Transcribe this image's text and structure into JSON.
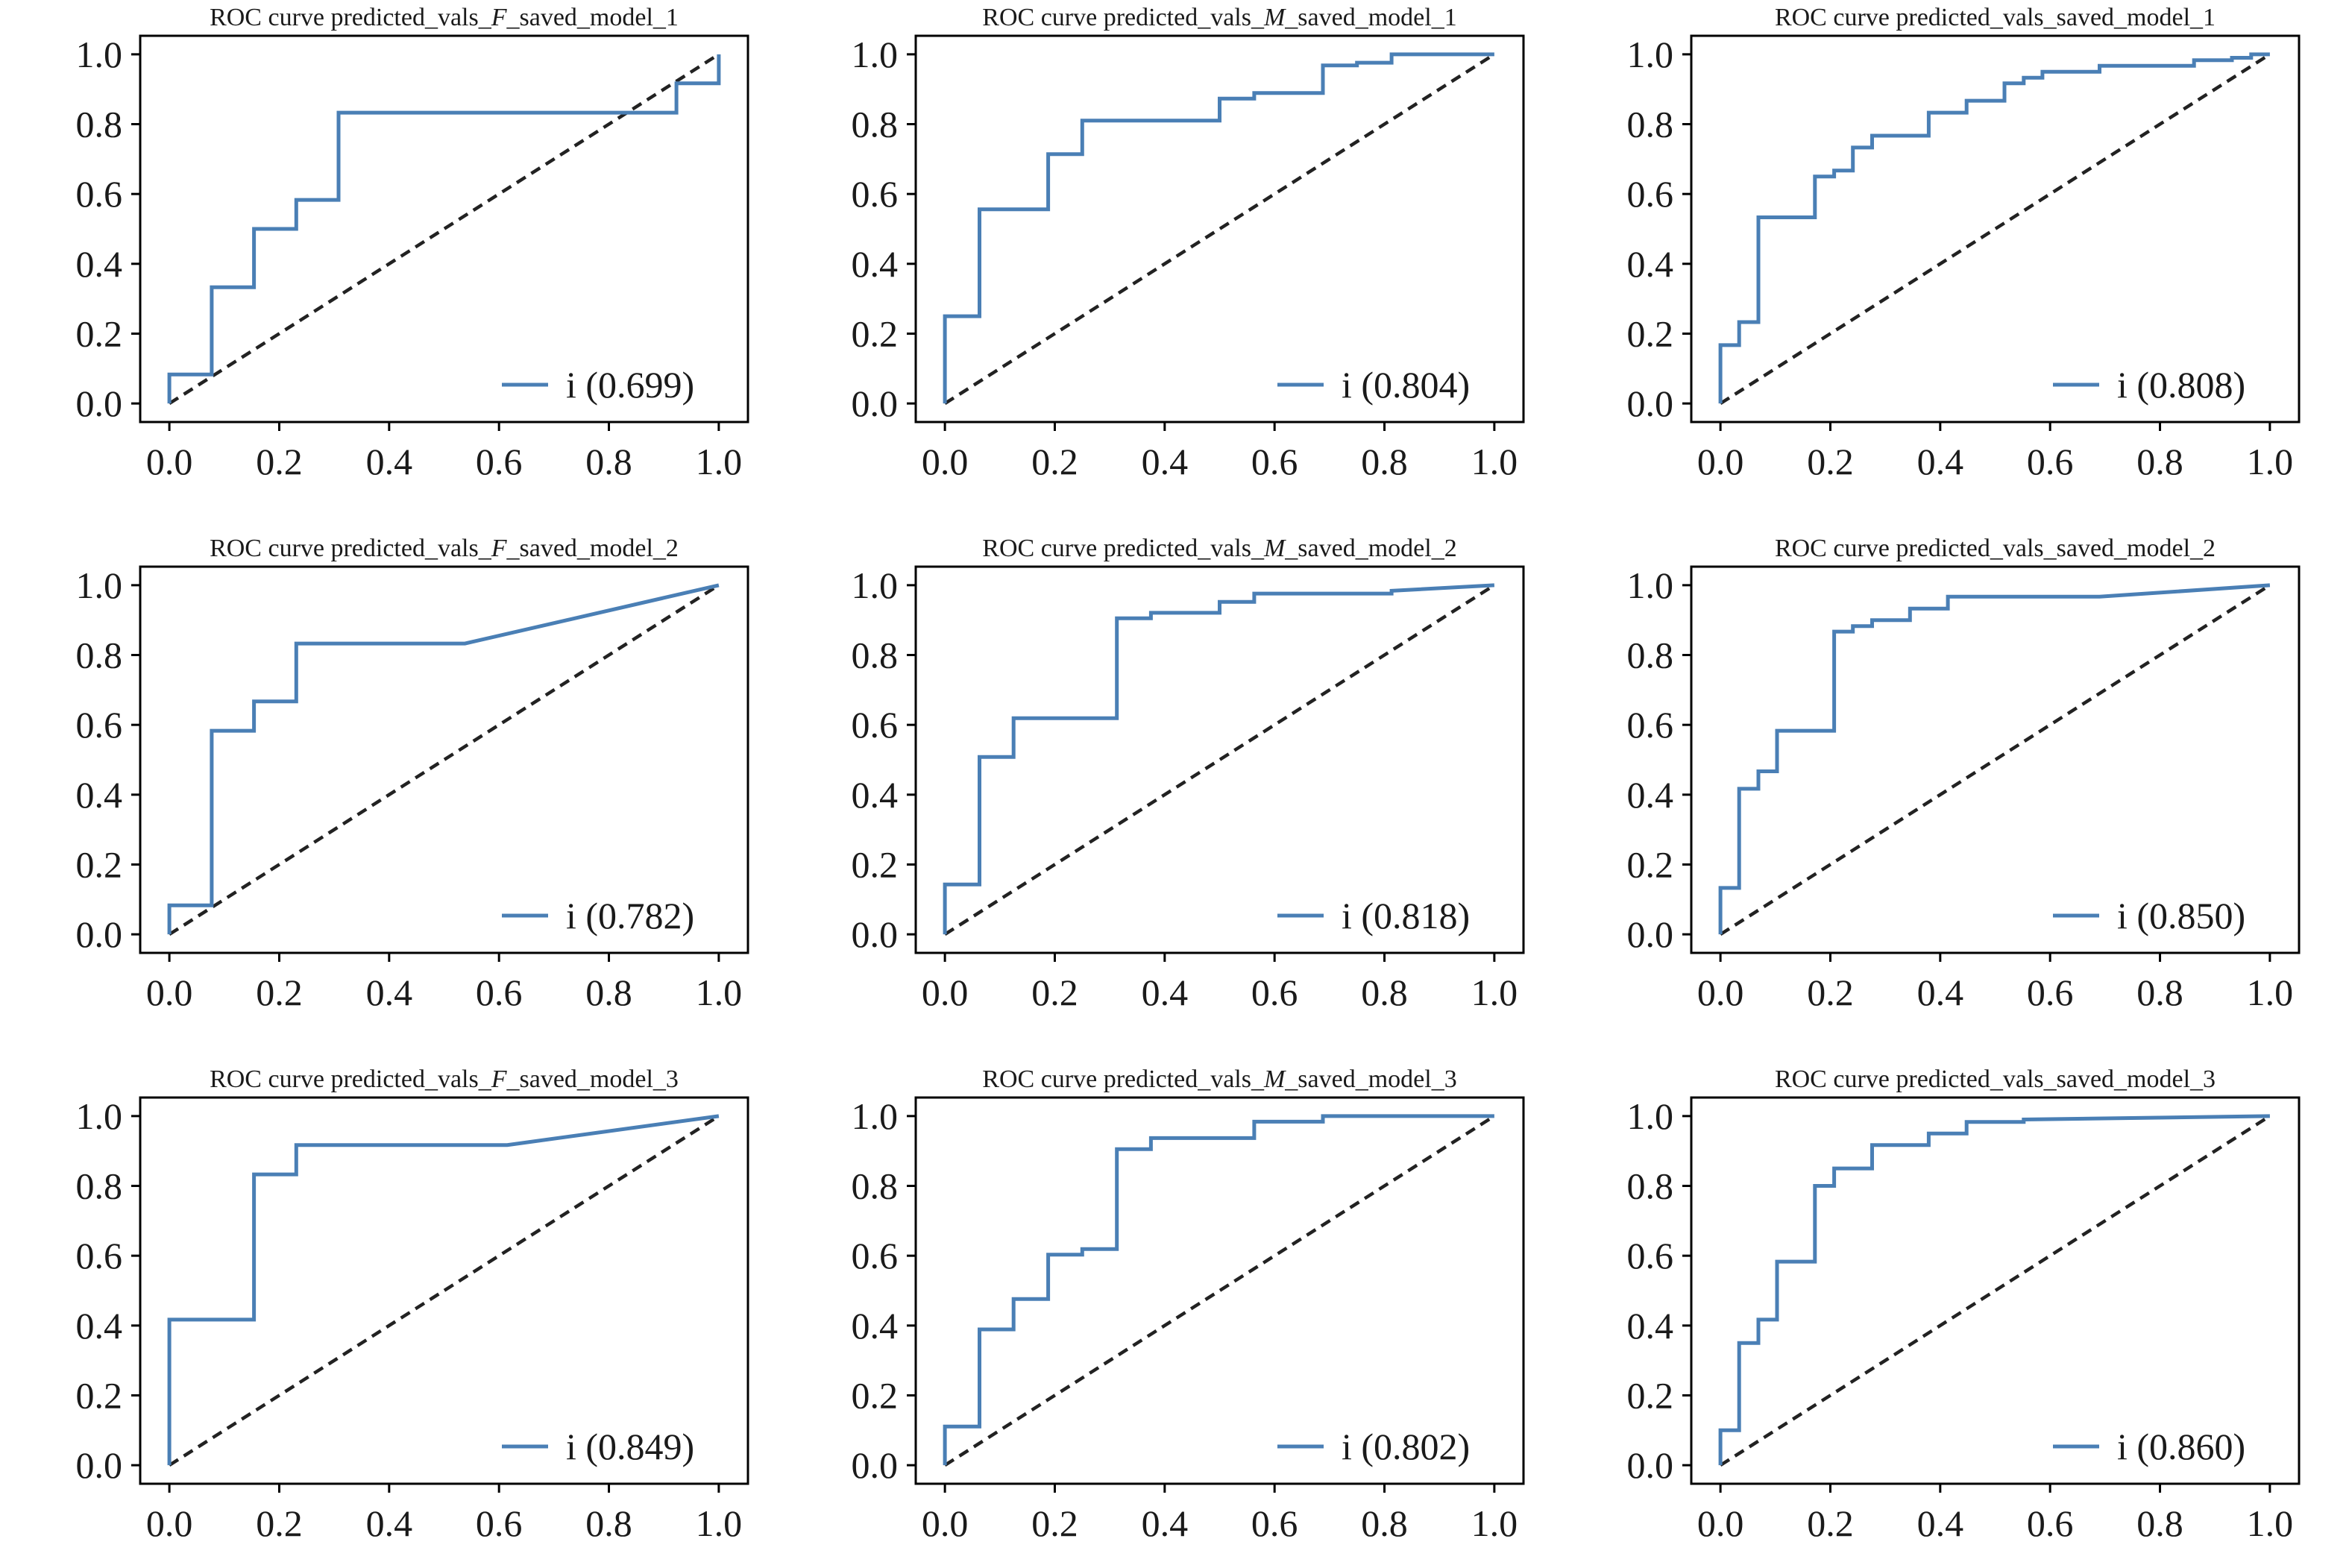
{
  "colors": {
    "roc": "#4a7fb5",
    "diagonal": "#222222",
    "axes": "#000000"
  },
  "chart_data": [
    {
      "type": "line",
      "title": "ROC curve predicted_vals_F_saved_model_1",
      "title_parts": [
        "ROC curve predicted_vals_",
        "F",
        "_saved_model_1"
      ],
      "legend": "i (0.699)",
      "legend_placement": "lower-right",
      "grid": false,
      "xlim": [
        0,
        1
      ],
      "ylim": [
        0,
        1
      ],
      "xticks": [
        "0.0",
        "0.2",
        "0.4",
        "0.6",
        "0.8",
        "1.0"
      ],
      "yticks": [
        "0.0",
        "0.2",
        "0.4",
        "0.6",
        "0.8",
        "1.0"
      ],
      "series": [
        {
          "x": [
            0,
            0,
            0.077,
            0.077,
            0.154,
            0.154,
            0.231,
            0.231,
            0.308,
            0.308,
            0.923,
            0.923,
            1.0,
            1.0
          ],
          "y": [
            0,
            0.083,
            0.083,
            0.333,
            0.333,
            0.5,
            0.5,
            0.583,
            0.583,
            0.833,
            0.833,
            0.917,
            0.917,
            1.0
          ]
        },
        {
          "x": [
            0,
            1
          ],
          "y": [
            0,
            1
          ]
        }
      ]
    },
    {
      "type": "line",
      "title": "ROC curve predicted_vals_M_saved_model_1",
      "title_parts": [
        "ROC curve predicted_vals_",
        "M",
        "_saved_model_1"
      ],
      "legend": "i (0.804)",
      "legend_placement": "lower-right",
      "grid": false,
      "xlim": [
        0,
        1
      ],
      "ylim": [
        0,
        1
      ],
      "xticks": [
        "0.0",
        "0.2",
        "0.4",
        "0.6",
        "0.8",
        "1.0"
      ],
      "yticks": [
        "0.0",
        "0.2",
        "0.4",
        "0.6",
        "0.8",
        "1.0"
      ],
      "series": [
        {
          "x": [
            0,
            0,
            0.063,
            0.063,
            0.188,
            0.188,
            0.25,
            0.25,
            0.5,
            0.5,
            0.563,
            0.563,
            0.688,
            0.688,
            0.75,
            0.75,
            0.813,
            0.813,
            1.0
          ],
          "y": [
            0,
            0.25,
            0.25,
            0.556,
            0.556,
            0.714,
            0.714,
            0.81,
            0.81,
            0.873,
            0.873,
            0.889,
            0.889,
            0.968,
            0.968,
            0.976,
            0.976,
            1.0,
            1.0
          ]
        },
        {
          "x": [
            0,
            1
          ],
          "y": [
            0,
            1
          ]
        }
      ]
    },
    {
      "type": "line",
      "title": "ROC curve predicted_vals_saved_model_1",
      "title_parts": [
        "ROC curve predicted_vals_saved_model_1"
      ],
      "legend": "i (0.808)",
      "legend_placement": "lower-right",
      "grid": false,
      "xlim": [
        0,
        1
      ],
      "ylim": [
        0,
        1
      ],
      "xticks": [
        "0.0",
        "0.2",
        "0.4",
        "0.6",
        "0.8",
        "1.0"
      ],
      "yticks": [
        "0.0",
        "0.2",
        "0.4",
        "0.6",
        "0.8",
        "1.0"
      ],
      "series": [
        {
          "x": [
            0,
            0,
            0.034,
            0.034,
            0.069,
            0.069,
            0.103,
            0.103,
            0.172,
            0.172,
            0.207,
            0.207,
            0.241,
            0.241,
            0.276,
            0.276,
            0.379,
            0.379,
            0.448,
            0.448,
            0.517,
            0.517,
            0.552,
            0.552,
            0.586,
            0.586,
            0.69,
            0.69,
            0.862,
            0.862,
            0.931,
            0.931,
            0.966,
            0.966,
            1.0
          ],
          "y": [
            0,
            0.167,
            0.167,
            0.233,
            0.233,
            0.533,
            0.533,
            0.533,
            0.533,
            0.65,
            0.65,
            0.667,
            0.667,
            0.733,
            0.733,
            0.767,
            0.767,
            0.833,
            0.833,
            0.867,
            0.867,
            0.917,
            0.917,
            0.933,
            0.933,
            0.95,
            0.95,
            0.967,
            0.967,
            0.983,
            0.983,
            0.99,
            0.99,
            1.0,
            1.0
          ]
        },
        {
          "x": [
            0,
            1
          ],
          "y": [
            0,
            1
          ]
        }
      ]
    },
    {
      "type": "line",
      "title": "ROC curve predicted_vals_F_saved_model_2",
      "title_parts": [
        "ROC curve predicted_vals_",
        "F",
        "_saved_model_2"
      ],
      "legend": "i (0.782)",
      "legend_placement": "lower-right",
      "grid": false,
      "xlim": [
        0,
        1
      ],
      "ylim": [
        0,
        1
      ],
      "xticks": [
        "0.0",
        "0.2",
        "0.4",
        "0.6",
        "0.8",
        "1.0"
      ],
      "yticks": [
        "0.0",
        "0.2",
        "0.4",
        "0.6",
        "0.8",
        "1.0"
      ],
      "series": [
        {
          "x": [
            0,
            0,
            0.077,
            0.077,
            0.154,
            0.154,
            0.231,
            0.231,
            0.538,
            1.0
          ],
          "y": [
            0,
            0.083,
            0.083,
            0.583,
            0.583,
            0.667,
            0.667,
            0.833,
            0.833,
            1.0
          ]
        },
        {
          "x": [
            0,
            1
          ],
          "y": [
            0,
            1
          ]
        }
      ]
    },
    {
      "type": "line",
      "title": "ROC curve predicted_vals_M_saved_model_2",
      "title_parts": [
        "ROC curve predicted_vals_",
        "M",
        "_saved_model_2"
      ],
      "legend": "i (0.818)",
      "legend_placement": "lower-right",
      "grid": false,
      "xlim": [
        0,
        1
      ],
      "ylim": [
        0,
        1
      ],
      "xticks": [
        "0.0",
        "0.2",
        "0.4",
        "0.6",
        "0.8",
        "1.0"
      ],
      "yticks": [
        "0.0",
        "0.2",
        "0.4",
        "0.6",
        "0.8",
        "1.0"
      ],
      "series": [
        {
          "x": [
            0,
            0,
            0.063,
            0.063,
            0.125,
            0.125,
            0.313,
            0.313,
            0.375,
            0.375,
            0.5,
            0.5,
            0.563,
            0.563,
            0.813,
            0.813,
            1.0
          ],
          "y": [
            0,
            0.143,
            0.143,
            0.508,
            0.508,
            0.619,
            0.619,
            0.905,
            0.905,
            0.921,
            0.921,
            0.952,
            0.952,
            0.976,
            0.976,
            0.984,
            1.0
          ]
        },
        {
          "x": [
            0,
            1
          ],
          "y": [
            0,
            1
          ]
        }
      ]
    },
    {
      "type": "line",
      "title": "ROC curve predicted_vals_saved_model_2",
      "title_parts": [
        "ROC curve predicted_vals_saved_model_2"
      ],
      "legend": "i (0.850)",
      "legend_placement": "lower-right",
      "grid": false,
      "xlim": [
        0,
        1
      ],
      "ylim": [
        0,
        1
      ],
      "xticks": [
        "0.0",
        "0.2",
        "0.4",
        "0.6",
        "0.8",
        "1.0"
      ],
      "yticks": [
        "0.0",
        "0.2",
        "0.4",
        "0.6",
        "0.8",
        "1.0"
      ],
      "series": [
        {
          "x": [
            0,
            0,
            0.034,
            0.034,
            0.069,
            0.069,
            0.103,
            0.103,
            0.207,
            0.207,
            0.241,
            0.241,
            0.276,
            0.276,
            0.345,
            0.345,
            0.414,
            0.414,
            0.69,
            1.0
          ],
          "y": [
            0,
            0.133,
            0.133,
            0.417,
            0.417,
            0.467,
            0.467,
            0.583,
            0.583,
            0.867,
            0.867,
            0.883,
            0.883,
            0.9,
            0.9,
            0.933,
            0.933,
            0.967,
            0.967,
            1.0
          ]
        },
        {
          "x": [
            0,
            1
          ],
          "y": [
            0,
            1
          ]
        }
      ]
    },
    {
      "type": "line",
      "title": "ROC curve predicted_vals_F_saved_model_3",
      "title_parts": [
        "ROC curve predicted_vals_",
        "F",
        "_saved_model_3"
      ],
      "legend": "i (0.849)",
      "legend_placement": "lower-right",
      "grid": false,
      "xlim": [
        0,
        1
      ],
      "ylim": [
        0,
        1
      ],
      "xticks": [
        "0.0",
        "0.2",
        "0.4",
        "0.6",
        "0.8",
        "1.0"
      ],
      "yticks": [
        "0.0",
        "0.2",
        "0.4",
        "0.6",
        "0.8",
        "1.0"
      ],
      "series": [
        {
          "x": [
            0,
            0,
            0.154,
            0.154,
            0.231,
            0.231,
            0.615,
            1.0
          ],
          "y": [
            0,
            0.417,
            0.417,
            0.833,
            0.833,
            0.917,
            0.917,
            1.0
          ]
        },
        {
          "x": [
            0,
            1
          ],
          "y": [
            0,
            1
          ]
        }
      ]
    },
    {
      "type": "line",
      "title": "ROC curve predicted_vals_M_saved_model_3",
      "title_parts": [
        "ROC curve predicted_vals_",
        "M",
        "_saved_model_3"
      ],
      "legend": "i (0.802)",
      "legend_placement": "lower-right",
      "grid": false,
      "xlim": [
        0,
        1
      ],
      "ylim": [
        0,
        1
      ],
      "xticks": [
        "0.0",
        "0.2",
        "0.4",
        "0.6",
        "0.8",
        "1.0"
      ],
      "yticks": [
        "0.0",
        "0.2",
        "0.4",
        "0.6",
        "0.8",
        "1.0"
      ],
      "series": [
        {
          "x": [
            0,
            0,
            0.063,
            0.063,
            0.125,
            0.125,
            0.188,
            0.188,
            0.25,
            0.25,
            0.313,
            0.313,
            0.375,
            0.375,
            0.563,
            0.563,
            0.688,
            0.688,
            1.0
          ],
          "y": [
            0,
            0.111,
            0.111,
            0.389,
            0.389,
            0.476,
            0.476,
            0.603,
            0.603,
            0.619,
            0.619,
            0.905,
            0.905,
            0.937,
            0.937,
            0.984,
            0.984,
            1.0,
            1.0
          ]
        },
        {
          "x": [
            0,
            1
          ],
          "y": [
            0,
            1
          ]
        }
      ]
    },
    {
      "type": "line",
      "title": "ROC curve predicted_vals_saved_model_3",
      "title_parts": [
        "ROC curve predicted_vals_saved_model_3"
      ],
      "legend": "i (0.860)",
      "legend_placement": "lower-right",
      "grid": false,
      "xlim": [
        0,
        1
      ],
      "ylim": [
        0,
        1
      ],
      "xticks": [
        "0.0",
        "0.2",
        "0.4",
        "0.6",
        "0.8",
        "1.0"
      ],
      "yticks": [
        "0.0",
        "0.2",
        "0.4",
        "0.6",
        "0.8",
        "1.0"
      ],
      "series": [
        {
          "x": [
            0,
            0,
            0.034,
            0.034,
            0.069,
            0.069,
            0.103,
            0.103,
            0.172,
            0.172,
            0.207,
            0.207,
            0.276,
            0.276,
            0.379,
            0.379,
            0.448,
            0.448,
            0.552,
            0.552,
            1.0
          ],
          "y": [
            0,
            0.1,
            0.1,
            0.35,
            0.35,
            0.417,
            0.417,
            0.583,
            0.583,
            0.8,
            0.8,
            0.85,
            0.85,
            0.917,
            0.917,
            0.95,
            0.95,
            0.983,
            0.983,
            0.99,
            1.0
          ]
        },
        {
          "x": [
            0,
            1
          ],
          "y": [
            0,
            1
          ]
        }
      ]
    }
  ]
}
